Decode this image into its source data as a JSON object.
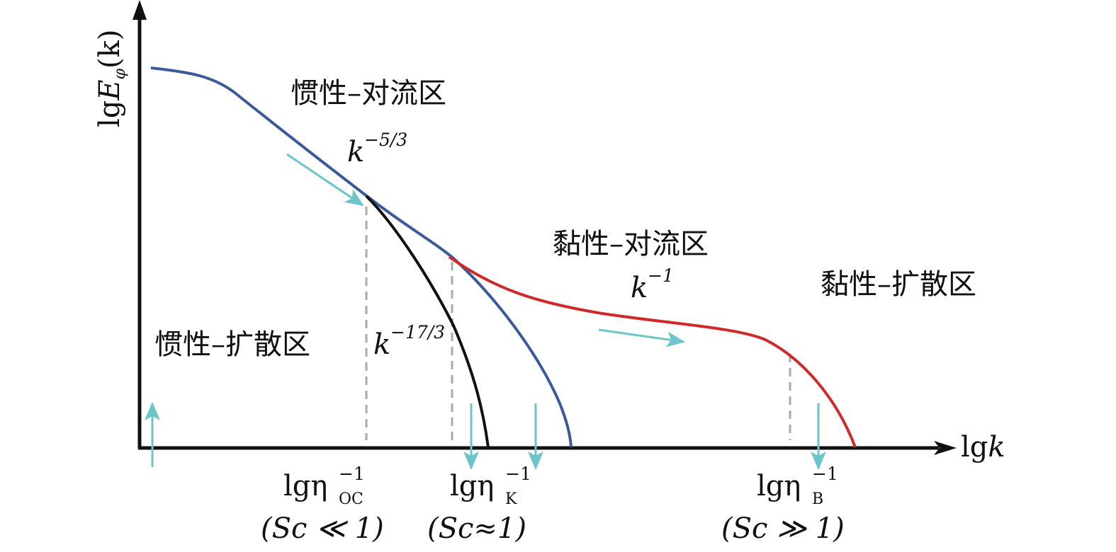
{
  "axes": {
    "y_label": {
      "prefix": "lg",
      "symbol": "E",
      "sub": "φ",
      "arg": "(k)"
    },
    "x_label": {
      "prefix": "lg",
      "symbol": "k"
    }
  },
  "regions": [
    "惯性–对流区",
    "黏性–对流区",
    "黏性–扩散区",
    "惯性–扩散区"
  ],
  "exponents": [
    {
      "base": "k",
      "sup": "−5/3"
    },
    {
      "base": "k",
      "sup": "−1"
    },
    {
      "base": "k",
      "sup": "−17/3"
    }
  ],
  "scales": [
    {
      "base": "lgη",
      "sub": "OC",
      "sup": "−1",
      "condition": "(Sc ≪ 1)"
    },
    {
      "base": "lgη",
      "sub": "K",
      "sup": "−1",
      "condition": "(Sc≈1)"
    },
    {
      "base": "lgη",
      "sub": "B",
      "sup": "−1",
      "condition": "(Sc ≫ 1)"
    }
  ]
}
